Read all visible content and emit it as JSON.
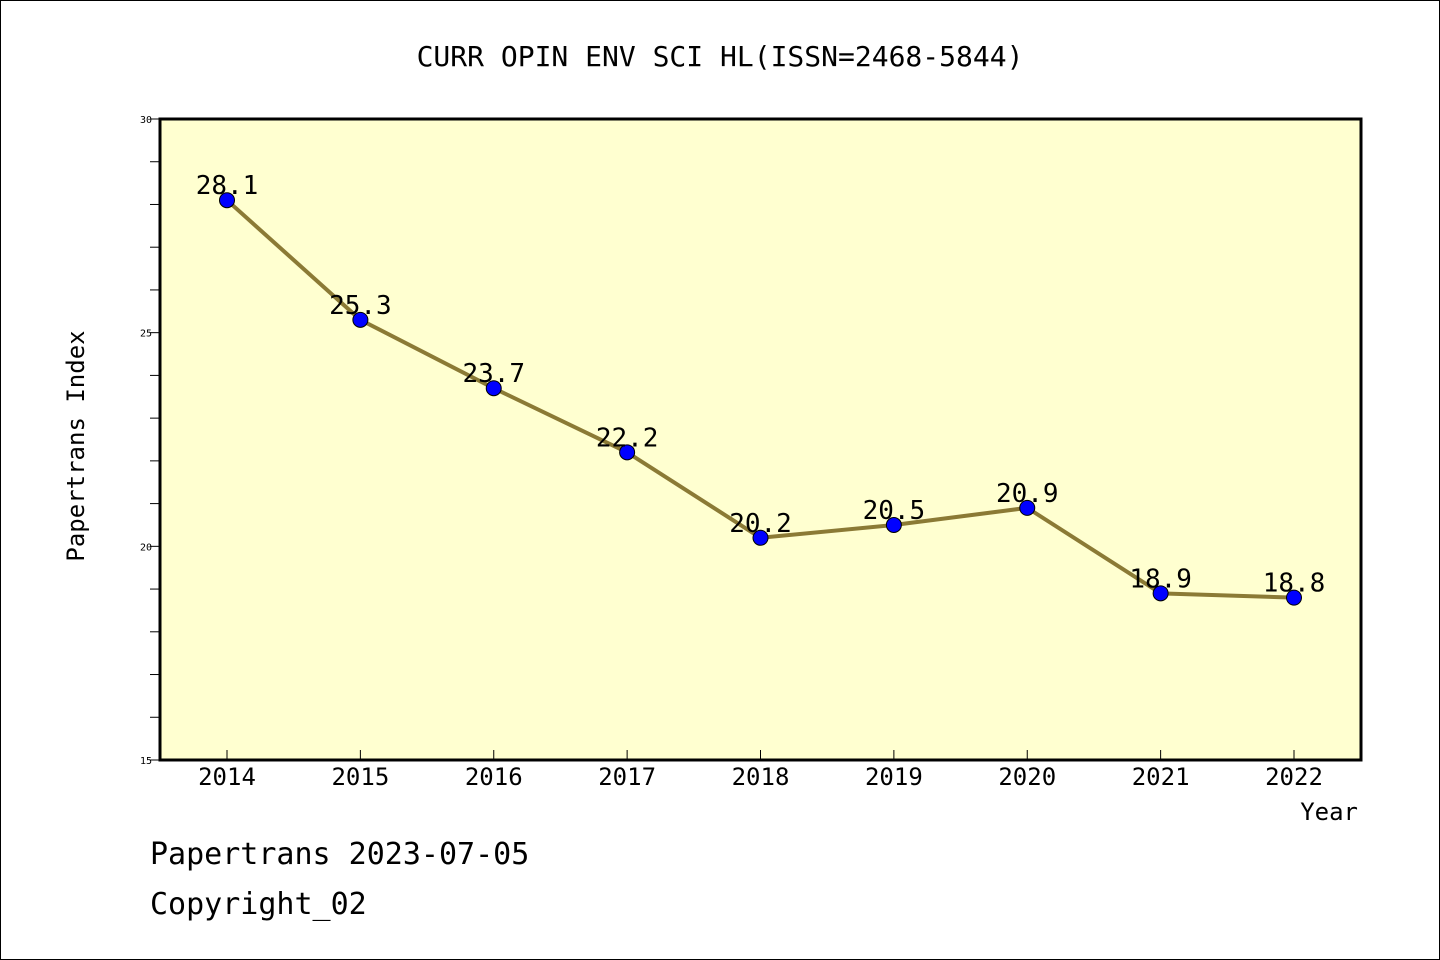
{
  "chart_data": {
    "type": "line",
    "title": "CURR OPIN ENV SCI HL(ISSN=2468-5844)",
    "xlabel": "Year",
    "ylabel": "Papertrans Index",
    "x": [
      "2014",
      "2015",
      "2016",
      "2017",
      "2018",
      "2019",
      "2020",
      "2021",
      "2022"
    ],
    "series": [
      {
        "values": [
          28.1,
          25.3,
          23.7,
          22.2,
          20.2,
          20.5,
          20.9,
          18.9,
          18.8
        ]
      }
    ],
    "data_labels": [
      "28.1",
      "25.3",
      "23.7",
      "22.2",
      "20.2",
      "20.5",
      "20.9",
      "18.9",
      "18.8"
    ],
    "ylim": [
      15,
      30
    ],
    "y_ticks": [
      "15",
      "20",
      "25",
      "30"
    ],
    "grid": false,
    "colors": {
      "plot_background": "#ffffd0",
      "line": "#8b7a35",
      "marker": "#0000ff"
    }
  },
  "footer": {
    "line1": "Papertrans 2023-07-05",
    "line2": "Copyright_02"
  }
}
